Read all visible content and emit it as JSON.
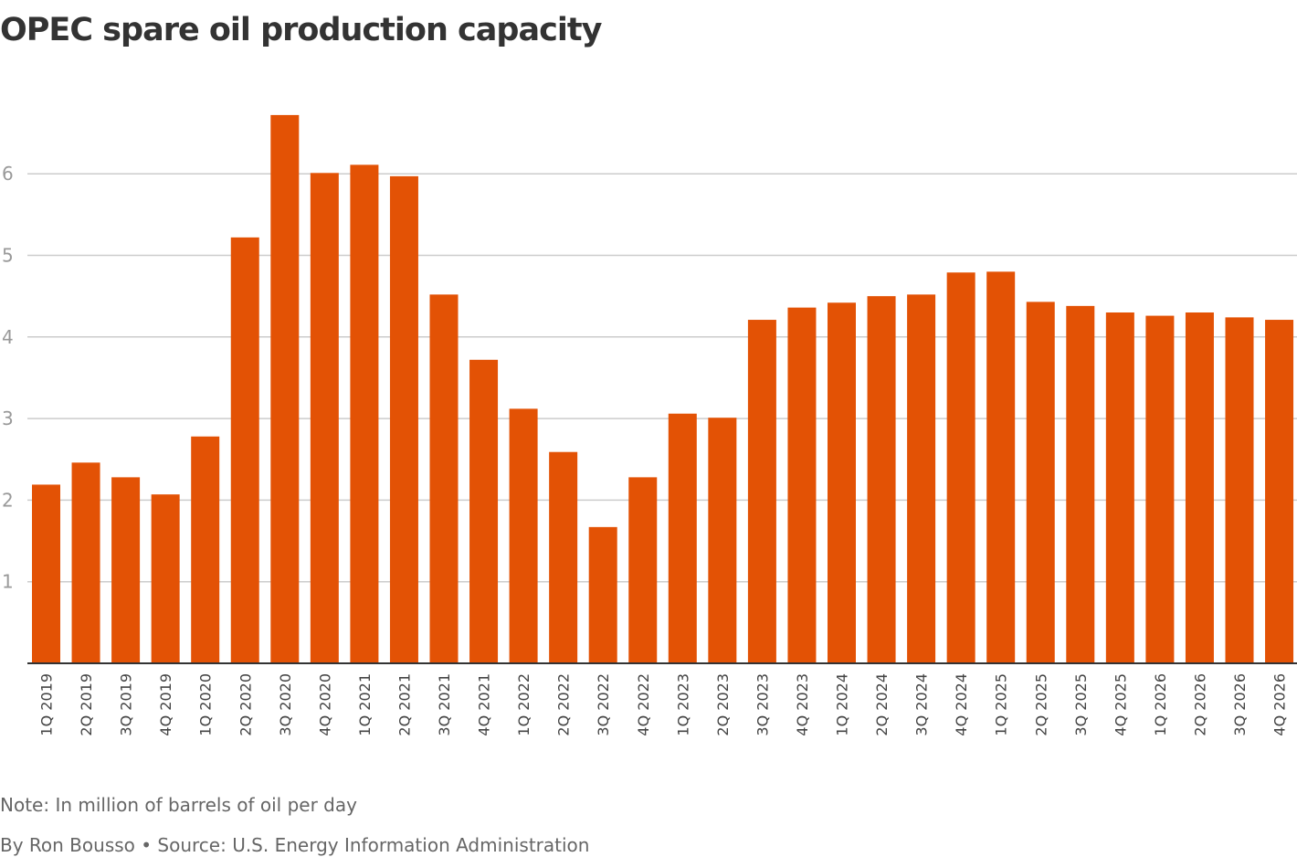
{
  "chart_data": {
    "type": "bar",
    "title": "OPEC spare oil production capacity",
    "xlabel": "",
    "ylabel": "",
    "ylim": [
      0,
      7
    ],
    "yticks": [
      1,
      2,
      3,
      4,
      5,
      6
    ],
    "grid": true,
    "bar_color": "#e35205",
    "categories": [
      "1Q 2019",
      "2Q 2019",
      "3Q 2019",
      "4Q 2019",
      "1Q 2020",
      "2Q 2020",
      "3Q 2020",
      "4Q 2020",
      "1Q 2021",
      "2Q 2021",
      "3Q 2021",
      "4Q 2021",
      "1Q 2022",
      "2Q 2022",
      "3Q 2022",
      "4Q 2022",
      "1Q 2023",
      "2Q 2023",
      "3Q 2023",
      "4Q 2023",
      "1Q 2024",
      "2Q 2024",
      "3Q 2024",
      "4Q 2024",
      "1Q 2025",
      "2Q 2025",
      "3Q 2025",
      "4Q 2025",
      "1Q 2026",
      "2Q 2026",
      "3Q 2026",
      "4Q 2026"
    ],
    "values": [
      2.19,
      2.46,
      2.28,
      2.07,
      2.78,
      5.22,
      6.72,
      6.01,
      6.11,
      5.97,
      4.52,
      3.72,
      3.12,
      2.59,
      1.67,
      2.28,
      3.06,
      3.01,
      4.21,
      4.36,
      4.42,
      4.5,
      4.52,
      4.79,
      4.8,
      4.43,
      4.38,
      4.3,
      4.26,
      4.3,
      4.24,
      4.21
    ]
  },
  "footer": {
    "note": "Note: In million of barrels of oil per day",
    "credit": "By Ron Bousso • Source: U.S. Energy Information Administration"
  }
}
